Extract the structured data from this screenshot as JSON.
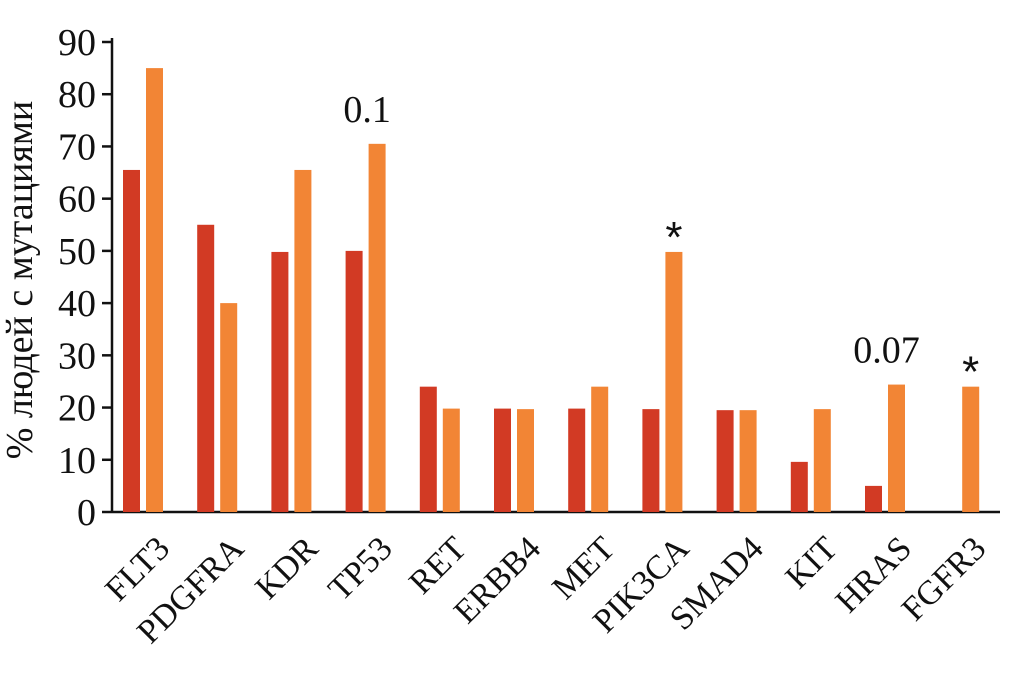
{
  "chart_data": {
    "type": "bar",
    "ylabel": "% людей с мутациями",
    "xlabel": "",
    "ylim": [
      0,
      90
    ],
    "yticks": [
      0,
      10,
      20,
      30,
      40,
      50,
      60,
      70,
      80,
      90
    ],
    "grid": false,
    "categories": [
      "FLT3",
      "PDGFRA",
      "KDR",
      "TP53",
      "RET",
      "ERBB4",
      "MET",
      "PIK3CA",
      "SMAD4",
      "KIT",
      "HRAS",
      "FGFR3"
    ],
    "series": [
      {
        "color": "#d23a24",
        "values": [
          65.5,
          55,
          49.8,
          50,
          24,
          19.8,
          19.8,
          19.7,
          19.5,
          9.6,
          5,
          0
        ]
      },
      {
        "color": "#f28535",
        "values": [
          85,
          40,
          65.5,
          70.5,
          19.8,
          19.7,
          24,
          49.8,
          19.5,
          19.7,
          24.4,
          24
        ]
      }
    ],
    "annotations": [
      {
        "category": "TP53",
        "text": "0.1"
      },
      {
        "category": "PIK3CA",
        "text": "*"
      },
      {
        "category": "HRAS",
        "text": "0.07"
      },
      {
        "category": "FGFR3",
        "text": "*"
      }
    ]
  }
}
